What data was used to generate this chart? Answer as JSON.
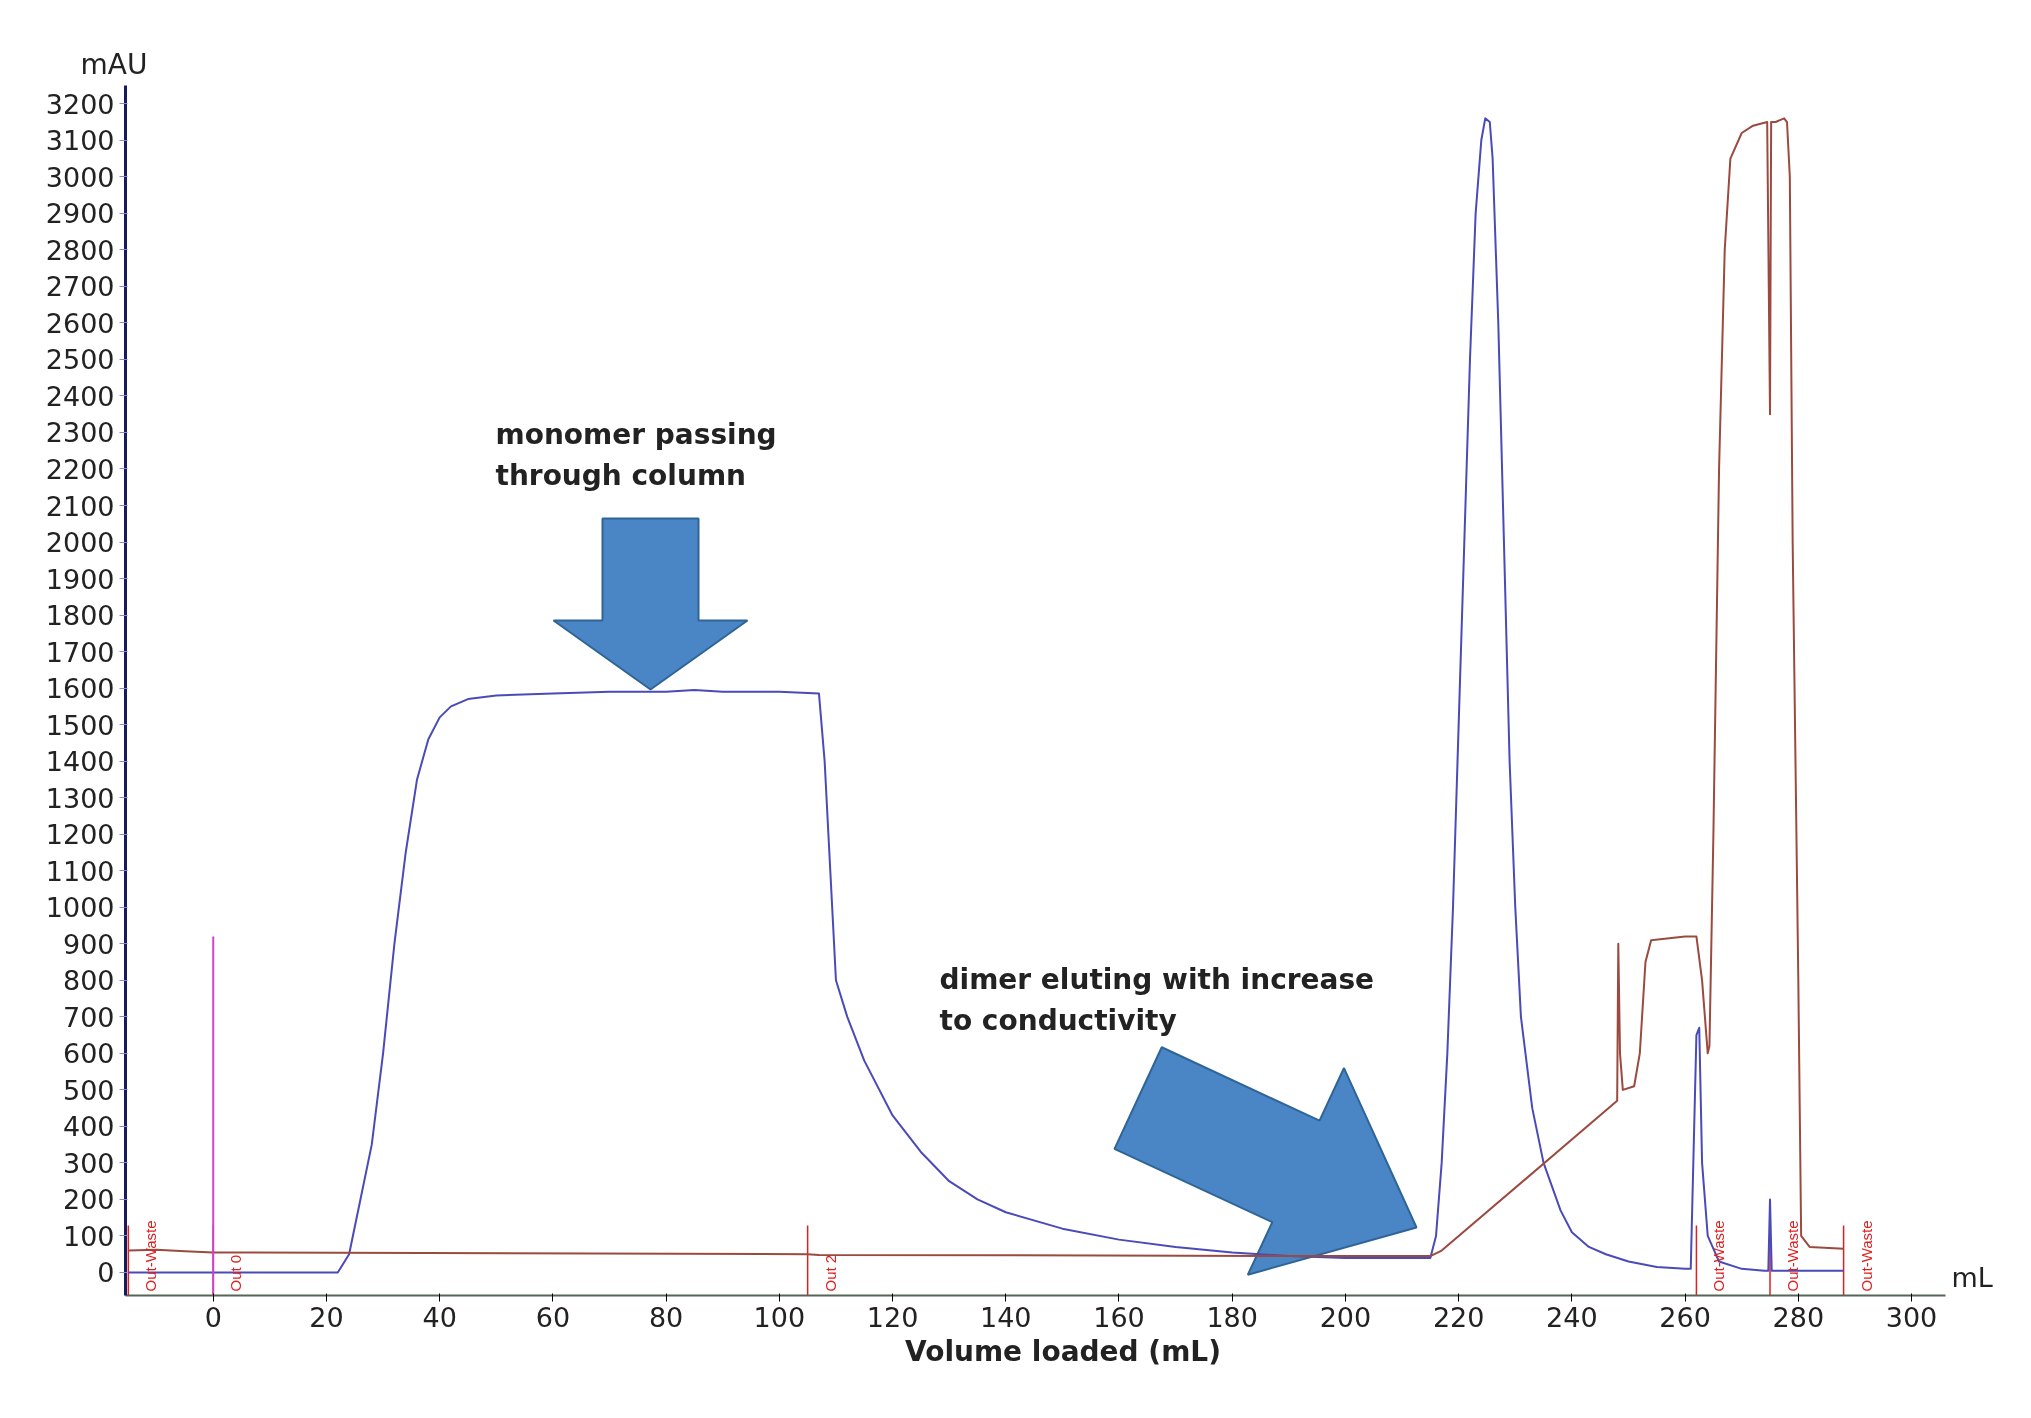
{
  "chart_data": {
    "type": "line",
    "xlabel": "Volume loaded (mL)",
    "ylabel": "mAU",
    "xlim": [
      -15.5,
      306
    ],
    "ylim": [
      -63,
      3250
    ],
    "xticks": [
      0,
      20,
      40,
      60,
      80,
      100,
      120,
      140,
      160,
      180,
      200,
      220,
      240,
      260,
      280,
      300
    ],
    "yticks": [
      0,
      100,
      200,
      300,
      400,
      500,
      600,
      700,
      800,
      900,
      1000,
      1100,
      1200,
      1300,
      1400,
      1500,
      1600,
      1700,
      1800,
      1900,
      2000,
      2100,
      2200,
      2300,
      2400,
      2500,
      2600,
      2700,
      2800,
      2900,
      3000,
      3100,
      3200
    ],
    "grid": false,
    "marker": "none",
    "line_style": "solid",
    "series": [
      {
        "color": "#4a4ab8",
        "x": [
          -15,
          22,
          24,
          26,
          28,
          30,
          32,
          34,
          36,
          38,
          40,
          42,
          45,
          50,
          60,
          70,
          80,
          85,
          90,
          100,
          107,
          108,
          109,
          110,
          112,
          115,
          120,
          125,
          130,
          135,
          140,
          150,
          160,
          170,
          180,
          190,
          200,
          210,
          215,
          216,
          217,
          218,
          219,
          220,
          221,
          222,
          223,
          224,
          224.7,
          225.5,
          226,
          227,
          228,
          229,
          230,
          231,
          233,
          235,
          238,
          240,
          243,
          246,
          250,
          255,
          260,
          261,
          262,
          262.5,
          263,
          264,
          266,
          270,
          274,
          274.7,
          275,
          275.3,
          278,
          280,
          288
        ],
        "values": [
          0,
          0,
          50,
          200,
          350,
          600,
          900,
          1150,
          1350,
          1460,
          1520,
          1550,
          1570,
          1580,
          1585,
          1590,
          1590,
          1595,
          1590,
          1590,
          1585,
          1400,
          1100,
          800,
          700,
          580,
          430,
          330,
          250,
          200,
          165,
          120,
          90,
          70,
          55,
          45,
          40,
          40,
          40,
          100,
          300,
          600,
          1000,
          1500,
          2000,
          2500,
          2900,
          3100,
          3160,
          3150,
          3050,
          2600,
          2000,
          1400,
          1000,
          700,
          450,
          300,
          170,
          110,
          70,
          50,
          30,
          15,
          10,
          10,
          650,
          670,
          300,
          100,
          30,
          10,
          5,
          5,
          200,
          5,
          5,
          5,
          5
        ]
      },
      {
        "color": "#9b4a40",
        "x": [
          -15,
          -10,
          -5,
          0,
          105,
          107,
          200,
          210,
          215,
          217,
          248,
          248.2,
          248.5,
          249,
          251,
          252,
          253,
          254,
          260,
          262,
          263,
          264,
          264.3,
          265,
          266,
          267,
          268,
          270,
          272,
          274.5,
          275,
          275.2,
          276,
          277.5,
          278,
          278.5,
          279,
          280,
          280.5,
          282,
          288
        ],
        "values": [
          60,
          62,
          58,
          55,
          50,
          48,
          45,
          45,
          45,
          60,
          470,
          900,
          600,
          500,
          510,
          600,
          850,
          910,
          920,
          920,
          800,
          600,
          620,
          1200,
          2200,
          2800,
          3050,
          3120,
          3140,
          3150,
          2350,
          3150,
          3150,
          3160,
          3150,
          3000,
          2000,
          800,
          100,
          70,
          65
        ]
      },
      {
        "color": "#cc44cc",
        "x": [
          0,
          0
        ],
        "values": [
          -60,
          920
        ]
      }
    ],
    "ref_lines": [
      {
        "axis": "x",
        "value": -15,
        "label": "Out-Waste",
        "color": "#e02020"
      },
      {
        "axis": "x",
        "value": 0,
        "label": "Out 0",
        "color": "#e02020"
      },
      {
        "axis": "x",
        "value": 105,
        "label": "Out 2",
        "color": "#e02020"
      },
      {
        "axis": "x",
        "value": 262,
        "label": "Out-Waste",
        "color": "#e02020"
      },
      {
        "axis": "x",
        "value": 275,
        "label": "Out-Waste",
        "color": "#e02020"
      },
      {
        "axis": "x",
        "value": 288,
        "label": "Out-Waste",
        "color": "#e02020"
      }
    ],
    "annotations": [
      "monomer passing\nthrough column",
      "dimer eluting with increase\nto conductivity",
      "mL"
    ]
  }
}
